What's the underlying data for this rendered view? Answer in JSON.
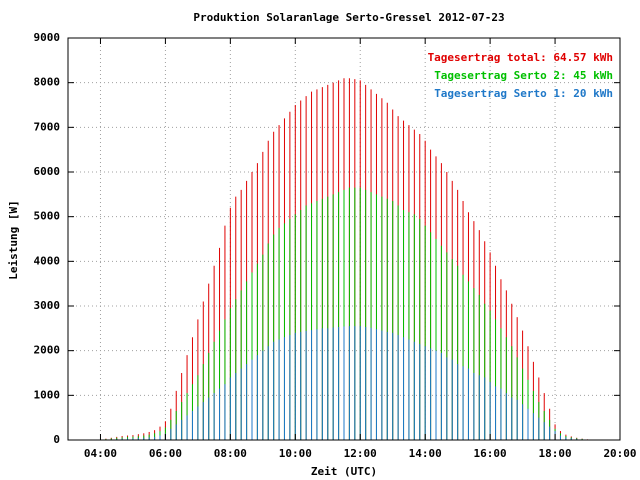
{
  "chart_data": {
    "type": "impulse",
    "title": "Produktion Solaranlage Serto-Gressel 2012-07-23",
    "x_label": "Zeit (UTC)",
    "y_label": "Leistung [W]",
    "xlim": [
      "03:00",
      "20:00"
    ],
    "xticks": [
      "04:00",
      "06:00",
      "08:00",
      "10:00",
      "12:00",
      "14:00",
      "16:00",
      "18:00",
      "20:00"
    ],
    "ylim": [
      0,
      9000
    ],
    "yticks": [
      0,
      1000,
      2000,
      3000,
      4000,
      5000,
      6000,
      7000,
      8000,
      9000
    ],
    "grid": true,
    "legend": "top-right",
    "x": [
      "04:00",
      "04:10",
      "04:20",
      "04:30",
      "04:40",
      "04:50",
      "05:00",
      "05:10",
      "05:20",
      "05:30",
      "05:40",
      "05:50",
      "06:00",
      "06:10",
      "06:20",
      "06:30",
      "06:40",
      "06:50",
      "07:00",
      "07:10",
      "07:20",
      "07:30",
      "07:40",
      "07:50",
      "08:00",
      "08:10",
      "08:20",
      "08:30",
      "08:40",
      "08:50",
      "09:00",
      "09:10",
      "09:20",
      "09:30",
      "09:40",
      "09:50",
      "10:00",
      "10:10",
      "10:20",
      "10:30",
      "10:40",
      "10:50",
      "11:00",
      "11:10",
      "11:20",
      "11:30",
      "11:40",
      "11:50",
      "12:00",
      "12:10",
      "12:20",
      "12:30",
      "12:40",
      "12:50",
      "13:00",
      "13:10",
      "13:20",
      "13:30",
      "13:40",
      "13:50",
      "14:00",
      "14:10",
      "14:20",
      "14:30",
      "14:40",
      "14:50",
      "15:00",
      "15:10",
      "15:20",
      "15:30",
      "15:40",
      "15:50",
      "16:00",
      "16:10",
      "16:20",
      "16:30",
      "16:40",
      "16:50",
      "17:00",
      "17:10",
      "17:20",
      "17:30",
      "17:40",
      "17:50",
      "18:00",
      "18:10",
      "18:20",
      "18:30",
      "18:40",
      "18:50",
      "19:00"
    ],
    "series": [
      {
        "name": "Tagesertrag total: 64.57 kWh",
        "color": "#e00000",
        "values": [
          10,
          30,
          50,
          70,
          90,
          100,
          110,
          130,
          150,
          180,
          220,
          300,
          420,
          700,
          1100,
          1500,
          1900,
          2300,
          2700,
          3100,
          3500,
          3900,
          4300,
          4800,
          5200,
          5450,
          5600,
          5800,
          6000,
          6200,
          6450,
          6700,
          6900,
          7050,
          7200,
          7350,
          7500,
          7600,
          7700,
          7800,
          7850,
          7900,
          7950,
          8000,
          8050,
          8100,
          8100,
          8080,
          8050,
          7950,
          7850,
          7750,
          7650,
          7550,
          7400,
          7250,
          7150,
          7050,
          6950,
          6850,
          6700,
          6500,
          6350,
          6200,
          6000,
          5800,
          5600,
          5350,
          5100,
          4900,
          4700,
          4450,
          4200,
          3900,
          3600,
          3350,
          3050,
          2750,
          2450,
          2100,
          1750,
          1400,
          1050,
          700,
          350,
          200,
          120,
          80,
          50,
          30,
          15
        ]
      },
      {
        "name": "Tagesertrag Serto 2: 45 kWh",
        "color": "#00c000",
        "values": [
          8,
          20,
          35,
          50,
          60,
          70,
          75,
          85,
          100,
          120,
          150,
          200,
          280,
          450,
          650,
          850,
          1050,
          1250,
          1450,
          1700,
          1950,
          2200,
          2450,
          2700,
          2950,
          3150,
          3350,
          3550,
          3750,
          3950,
          4150,
          4400,
          4600,
          4750,
          4850,
          4950,
          5050,
          5150,
          5250,
          5300,
          5350,
          5400,
          5450,
          5500,
          5550,
          5600,
          5650,
          5650,
          5650,
          5600,
          5550,
          5500,
          5450,
          5400,
          5350,
          5250,
          5150,
          5100,
          5050,
          4950,
          4800,
          4650,
          4500,
          4350,
          4200,
          4050,
          3900,
          3700,
          3550,
          3400,
          3250,
          3050,
          2900,
          2700,
          2500,
          2300,
          2100,
          1850,
          1600,
          1350,
          1100,
          850,
          650,
          450,
          250,
          150,
          90,
          60,
          40,
          25,
          10
        ]
      },
      {
        "name": "Tagesertrag Serto 1: 20 kWh",
        "color": "#1f78c8",
        "values": [
          2,
          10,
          15,
          20,
          30,
          30,
          35,
          45,
          50,
          60,
          70,
          100,
          140,
          250,
          350,
          450,
          550,
          650,
          750,
          850,
          950,
          1050,
          1150,
          1250,
          1400,
          1500,
          1600,
          1700,
          1800,
          1900,
          2000,
          2100,
          2200,
          2250,
          2300,
          2350,
          2400,
          2420,
          2440,
          2460,
          2480,
          2500,
          2500,
          2520,
          2530,
          2540,
          2550,
          2550,
          2550,
          2530,
          2510,
          2480,
          2450,
          2420,
          2400,
          2350,
          2300,
          2250,
          2200,
          2150,
          2100,
          2050,
          2000,
          1950,
          1850,
          1800,
          1700,
          1650,
          1600,
          1500,
          1450,
          1400,
          1300,
          1200,
          1150,
          1050,
          950,
          900,
          800,
          700,
          600,
          500,
          400,
          300,
          200,
          100,
          60,
          40,
          25,
          15,
          8
        ]
      }
    ]
  }
}
